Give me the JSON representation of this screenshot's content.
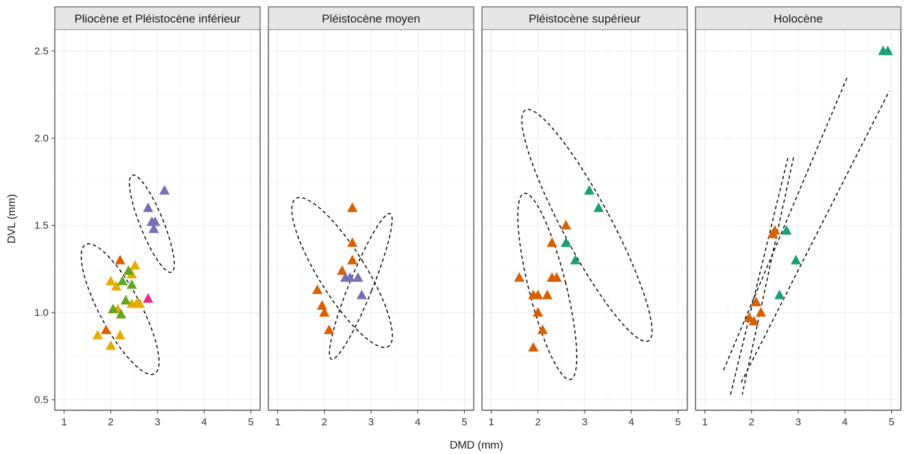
{
  "chart_data": {
    "type": "scatter",
    "xlabel": "DMD (mm)",
    "ylabel": "DVL (mm)",
    "xlim": [
      0.8,
      5.2
    ],
    "ylim": [
      0.44,
      2.62
    ],
    "x_ticks": [
      "1",
      "2",
      "3",
      "4",
      "5"
    ],
    "y_ticks": [
      "0.5",
      "1.0",
      "1.5",
      "2.0",
      "2.5"
    ],
    "grid": true,
    "colors": {
      "orange": "#d95f02",
      "yellow": "#e6ab02",
      "green": "#66a61e",
      "purple": "#7570b3",
      "teal": "#1b9e77",
      "magenta": "#e7298a"
    },
    "panels": [
      {
        "title": "Pliocène et Pléistocène inférieur",
        "points": [
          {
            "x": 2.2,
            "y": 1.3,
            "color": "orange"
          },
          {
            "x": 1.9,
            "y": 0.9,
            "color": "orange"
          },
          {
            "x": 2.52,
            "y": 1.27,
            "color": "yellow"
          },
          {
            "x": 2.45,
            "y": 1.22,
            "color": "yellow"
          },
          {
            "x": 2.0,
            "y": 1.18,
            "color": "yellow"
          },
          {
            "x": 2.12,
            "y": 1.15,
            "color": "yellow"
          },
          {
            "x": 2.45,
            "y": 1.05,
            "color": "yellow"
          },
          {
            "x": 2.55,
            "y": 1.05,
            "color": "yellow"
          },
          {
            "x": 2.62,
            "y": 1.05,
            "color": "yellow"
          },
          {
            "x": 2.15,
            "y": 1.02,
            "color": "yellow"
          },
          {
            "x": 1.72,
            "y": 0.87,
            "color": "yellow"
          },
          {
            "x": 2.2,
            "y": 0.87,
            "color": "yellow"
          },
          {
            "x": 2.0,
            "y": 0.81,
            "color": "yellow"
          },
          {
            "x": 2.38,
            "y": 1.24,
            "color": "green"
          },
          {
            "x": 2.25,
            "y": 1.18,
            "color": "green"
          },
          {
            "x": 2.45,
            "y": 1.16,
            "color": "green"
          },
          {
            "x": 2.32,
            "y": 1.07,
            "color": "green"
          },
          {
            "x": 2.05,
            "y": 1.02,
            "color": "green"
          },
          {
            "x": 2.22,
            "y": 0.99,
            "color": "green"
          },
          {
            "x": 3.15,
            "y": 1.7,
            "color": "purple"
          },
          {
            "x": 2.8,
            "y": 1.6,
            "color": "purple"
          },
          {
            "x": 2.88,
            "y": 1.52,
            "color": "purple"
          },
          {
            "x": 2.95,
            "y": 1.52,
            "color": "purple"
          },
          {
            "x": 2.92,
            "y": 1.48,
            "color": "purple"
          },
          {
            "x": 2.8,
            "y": 1.08,
            "color": "magenta"
          }
        ],
        "ellipses": [
          {
            "cx": 2.2,
            "cy": 1.02,
            "rx": 0.44,
            "ry": 0.42,
            "angle_deg": 28
          },
          {
            "cx": 2.88,
            "cy": 1.51,
            "rx": 0.25,
            "ry": 0.3,
            "angle_deg": 22
          }
        ],
        "lines": []
      },
      {
        "title": "Pléistocène moyen",
        "points": [
          {
            "x": 2.6,
            "y": 1.6,
            "color": "orange"
          },
          {
            "x": 2.6,
            "y": 1.4,
            "color": "orange"
          },
          {
            "x": 2.6,
            "y": 1.3,
            "color": "orange"
          },
          {
            "x": 2.38,
            "y": 1.24,
            "color": "orange"
          },
          {
            "x": 1.85,
            "y": 1.13,
            "color": "orange"
          },
          {
            "x": 1.95,
            "y": 1.04,
            "color": "orange"
          },
          {
            "x": 2.0,
            "y": 1.0,
            "color": "orange"
          },
          {
            "x": 2.1,
            "y": 0.9,
            "color": "orange"
          },
          {
            "x": 2.45,
            "y": 1.2,
            "color": "purple"
          },
          {
            "x": 2.55,
            "y": 1.2,
            "color": "purple"
          },
          {
            "x": 2.72,
            "y": 1.2,
            "color": "purple"
          },
          {
            "x": 2.8,
            "y": 1.1,
            "color": "purple"
          }
        ],
        "ellipses": [
          {
            "cx": 2.38,
            "cy": 1.23,
            "rx": 0.5,
            "ry": 0.5,
            "angle_deg": 32
          },
          {
            "cx": 2.78,
            "cy": 1.15,
            "rx": 0.25,
            "ry": 0.45,
            "angle_deg": -22
          }
        ],
        "lines": []
      },
      {
        "title": "Pléistocène supérieur",
        "points": [
          {
            "x": 1.6,
            "y": 1.2,
            "color": "orange"
          },
          {
            "x": 1.9,
            "y": 1.1,
            "color": "orange"
          },
          {
            "x": 2.0,
            "y": 1.1,
            "color": "orange"
          },
          {
            "x": 2.2,
            "y": 1.1,
            "color": "orange"
          },
          {
            "x": 2.3,
            "y": 1.4,
            "color": "orange"
          },
          {
            "x": 2.3,
            "y": 1.2,
            "color": "orange"
          },
          {
            "x": 2.4,
            "y": 1.2,
            "color": "orange"
          },
          {
            "x": 2.6,
            "y": 1.5,
            "color": "orange"
          },
          {
            "x": 2.0,
            "y": 1.0,
            "color": "orange"
          },
          {
            "x": 2.1,
            "y": 0.9,
            "color": "orange"
          },
          {
            "x": 1.9,
            "y": 0.8,
            "color": "orange"
          },
          {
            "x": 3.1,
            "y": 1.7,
            "color": "teal"
          },
          {
            "x": 3.3,
            "y": 1.6,
            "color": "teal"
          },
          {
            "x": 2.6,
            "y": 1.4,
            "color": "teal"
          },
          {
            "x": 2.8,
            "y": 1.3,
            "color": "teal"
          }
        ],
        "ellipses": [
          {
            "cx": 2.2,
            "cy": 1.15,
            "rx": 0.4,
            "ry": 0.55,
            "angle_deg": 14
          },
          {
            "cx": 3.05,
            "cy": 1.5,
            "rx": 0.52,
            "ry": 0.75,
            "angle_deg": 28
          }
        ],
        "lines": []
      },
      {
        "title": "Holocène",
        "points": [
          {
            "x": 2.45,
            "y": 1.45,
            "color": "orange"
          },
          {
            "x": 2.5,
            "y": 1.47,
            "color": "orange"
          },
          {
            "x": 2.1,
            "y": 1.06,
            "color": "orange"
          },
          {
            "x": 2.2,
            "y": 1.0,
            "color": "orange"
          },
          {
            "x": 1.95,
            "y": 0.97,
            "color": "orange"
          },
          {
            "x": 2.05,
            "y": 0.95,
            "color": "orange"
          },
          {
            "x": 2.75,
            "y": 1.47,
            "color": "teal"
          },
          {
            "x": 2.95,
            "y": 1.3,
            "color": "teal"
          },
          {
            "x": 2.6,
            "y": 1.1,
            "color": "teal"
          },
          {
            "x": 4.82,
            "y": 2.5,
            "color": "teal"
          },
          {
            "x": 4.92,
            "y": 2.5,
            "color": "teal"
          }
        ],
        "ellipses": [],
        "lines": [
          {
            "x1": 1.4,
            "y1": 0.67,
            "x2": 4.05,
            "y2": 2.35
          },
          {
            "x1": 1.78,
            "y1": 0.6,
            "x2": 4.95,
            "y2": 2.27
          },
          {
            "x1": 1.55,
            "y1": 0.53,
            "x2": 2.78,
            "y2": 1.89
          },
          {
            "x1": 2.9,
            "y1": 1.89,
            "x2": 1.8,
            "y2": 0.53
          }
        ]
      }
    ]
  }
}
